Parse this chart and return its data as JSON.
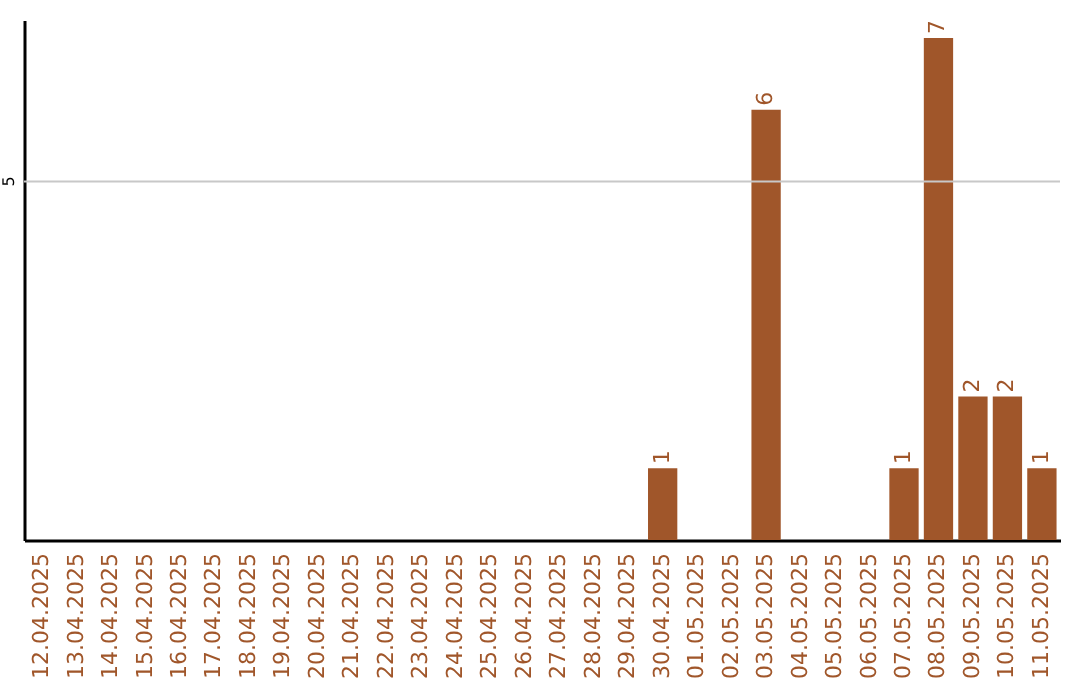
{
  "chart_data": {
    "type": "bar",
    "categories": [
      "12.04.2025",
      "13.04.2025",
      "14.04.2025",
      "15.04.2025",
      "16.04.2025",
      "17.04.2025",
      "18.04.2025",
      "19.04.2025",
      "20.04.2025",
      "21.04.2025",
      "22.04.2025",
      "23.04.2025",
      "24.04.2025",
      "25.04.2025",
      "26.04.2025",
      "27.04.2025",
      "28.04.2025",
      "29.04.2025",
      "30.04.2025",
      "01.05.2025",
      "02.05.2025",
      "03.05.2025",
      "04.05.2025",
      "05.05.2025",
      "06.05.2025",
      "07.05.2025",
      "08.05.2025",
      "09.05.2025",
      "10.05.2025",
      "11.05.2025"
    ],
    "values": [
      null,
      null,
      null,
      null,
      null,
      null,
      null,
      null,
      null,
      null,
      null,
      null,
      null,
      null,
      null,
      null,
      null,
      null,
      1,
      null,
      null,
      6,
      null,
      null,
      null,
      1,
      7,
      2,
      2,
      1
    ],
    "data_labels": true,
    "color": "#a0562a",
    "ylim": [
      0,
      7.25
    ],
    "ref_lines": [
      {
        "axis": "y",
        "value": 5,
        "label": "5",
        "color": "#c8c8c8"
      }
    ]
  }
}
